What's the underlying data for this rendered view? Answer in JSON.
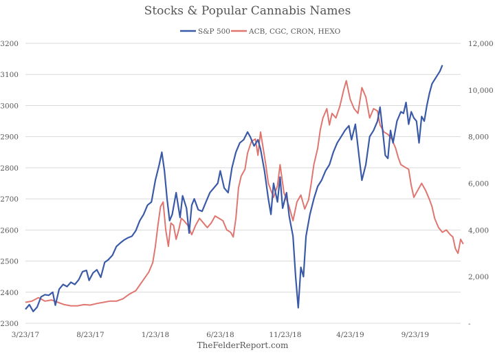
{
  "chart_data": {
    "type": "line",
    "title": "Stocks & Popular Cannabis Names",
    "footer": "TheFelderReport.com",
    "grid": true,
    "legend_position": "top-center",
    "x_tick_labels": [
      "3/23/17",
      "8/23/17",
      "1/23/18",
      "6/23/18",
      "11/23/18",
      "4/23/19",
      "9/23/19"
    ],
    "x_tick_months": [
      0,
      5,
      10,
      15,
      20,
      25,
      30
    ],
    "x_range_months": [
      0,
      33.5
    ],
    "y_left": {
      "ticks": [
        "2300",
        "2400",
        "2500",
        "2600",
        "2700",
        "2800",
        "2900",
        "3000",
        "3100",
        "3200"
      ],
      "range": [
        2300,
        3200
      ]
    },
    "y_right": {
      "ticks": [
        "-",
        "2,000",
        "4,000",
        "6,000",
        "8,000",
        "10,000",
        "12,000"
      ],
      "range": [
        0,
        12000
      ]
    },
    "series": [
      {
        "name": "S&P 500",
        "color": "#3a5aa8",
        "axis": "left",
        "points": [
          [
            0,
            2345
          ],
          [
            0.3,
            2360
          ],
          [
            0.6,
            2338
          ],
          [
            0.9,
            2352
          ],
          [
            1.2,
            2385
          ],
          [
            1.5,
            2392
          ],
          [
            1.8,
            2390
          ],
          [
            2.1,
            2400
          ],
          [
            2.3,
            2358
          ],
          [
            2.6,
            2410
          ],
          [
            2.9,
            2425
          ],
          [
            3.2,
            2418
          ],
          [
            3.5,
            2432
          ],
          [
            3.8,
            2425
          ],
          [
            4.1,
            2440
          ],
          [
            4.4,
            2466
          ],
          [
            4.7,
            2470
          ],
          [
            4.9,
            2438
          ],
          [
            5.2,
            2462
          ],
          [
            5.5,
            2472
          ],
          [
            5.8,
            2448
          ],
          [
            6.1,
            2496
          ],
          [
            6.4,
            2505
          ],
          [
            6.7,
            2519
          ],
          [
            7.0,
            2547
          ],
          [
            7.3,
            2558
          ],
          [
            7.6,
            2568
          ],
          [
            7.9,
            2575
          ],
          [
            8.2,
            2580
          ],
          [
            8.5,
            2598
          ],
          [
            8.8,
            2630
          ],
          [
            9.1,
            2650
          ],
          [
            9.4,
            2680
          ],
          [
            9.7,
            2690
          ],
          [
            10.0,
            2760
          ],
          [
            10.3,
            2810
          ],
          [
            10.5,
            2850
          ],
          [
            10.7,
            2790
          ],
          [
            10.9,
            2700
          ],
          [
            11.1,
            2630
          ],
          [
            11.3,
            2650
          ],
          [
            11.6,
            2720
          ],
          [
            11.9,
            2640
          ],
          [
            12.1,
            2710
          ],
          [
            12.4,
            2670
          ],
          [
            12.6,
            2590
          ],
          [
            12.8,
            2680
          ],
          [
            13.0,
            2700
          ],
          [
            13.3,
            2665
          ],
          [
            13.6,
            2660
          ],
          [
            13.9,
            2690
          ],
          [
            14.2,
            2720
          ],
          [
            14.5,
            2735
          ],
          [
            14.8,
            2750
          ],
          [
            15.0,
            2790
          ],
          [
            15.3,
            2735
          ],
          [
            15.6,
            2720
          ],
          [
            15.9,
            2800
          ],
          [
            16.2,
            2850
          ],
          [
            16.5,
            2880
          ],
          [
            16.8,
            2890
          ],
          [
            17.1,
            2915
          ],
          [
            17.3,
            2900
          ],
          [
            17.6,
            2870
          ],
          [
            17.9,
            2890
          ],
          [
            18.1,
            2860
          ],
          [
            18.4,
            2790
          ],
          [
            18.7,
            2700
          ],
          [
            18.9,
            2650
          ],
          [
            19.1,
            2750
          ],
          [
            19.4,
            2690
          ],
          [
            19.6,
            2770
          ],
          [
            19.8,
            2670
          ],
          [
            20.1,
            2720
          ],
          [
            20.3,
            2645
          ],
          [
            20.6,
            2580
          ],
          [
            20.8,
            2450
          ],
          [
            21.0,
            2350
          ],
          [
            21.2,
            2480
          ],
          [
            21.4,
            2450
          ],
          [
            21.6,
            2580
          ],
          [
            21.9,
            2650
          ],
          [
            22.2,
            2700
          ],
          [
            22.5,
            2740
          ],
          [
            22.8,
            2760
          ],
          [
            23.1,
            2790
          ],
          [
            23.4,
            2810
          ],
          [
            23.7,
            2850
          ],
          [
            24.0,
            2880
          ],
          [
            24.3,
            2900
          ],
          [
            24.6,
            2920
          ],
          [
            24.9,
            2935
          ],
          [
            25.1,
            2890
          ],
          [
            25.4,
            2940
          ],
          [
            25.7,
            2830
          ],
          [
            25.9,
            2760
          ],
          [
            26.2,
            2810
          ],
          [
            26.5,
            2900
          ],
          [
            26.8,
            2920
          ],
          [
            27.1,
            2950
          ],
          [
            27.3,
            2995
          ],
          [
            27.5,
            2920
          ],
          [
            27.7,
            2840
          ],
          [
            27.9,
            2830
          ],
          [
            28.1,
            2920
          ],
          [
            28.3,
            2880
          ],
          [
            28.6,
            2950
          ],
          [
            28.9,
            2980
          ],
          [
            29.1,
            2975
          ],
          [
            29.3,
            3010
          ],
          [
            29.5,
            2940
          ],
          [
            29.7,
            2980
          ],
          [
            29.9,
            2960
          ],
          [
            30.1,
            2950
          ],
          [
            30.3,
            2880
          ],
          [
            30.5,
            2965
          ],
          [
            30.7,
            2950
          ],
          [
            30.9,
            3000
          ],
          [
            31.1,
            3040
          ],
          [
            31.3,
            3070
          ],
          [
            31.6,
            3090
          ],
          [
            31.9,
            3110
          ],
          [
            32.1,
            3130
          ]
        ]
      },
      {
        "name": "ACB, CGC, CRON, HEXO",
        "color": "#e07570",
        "axis": "right",
        "points": [
          [
            0,
            900
          ],
          [
            0.5,
            950
          ],
          [
            1.0,
            1100
          ],
          [
            1.5,
            950
          ],
          [
            2.0,
            1000
          ],
          [
            2.5,
            900
          ],
          [
            3.0,
            800
          ],
          [
            3.5,
            750
          ],
          [
            4.0,
            750
          ],
          [
            4.5,
            800
          ],
          [
            5.0,
            780
          ],
          [
            5.5,
            850
          ],
          [
            6.0,
            900
          ],
          [
            6.5,
            950
          ],
          [
            7.0,
            950
          ],
          [
            7.5,
            1050
          ],
          [
            8.0,
            1250
          ],
          [
            8.5,
            1400
          ],
          [
            9.0,
            1800
          ],
          [
            9.5,
            2200
          ],
          [
            9.8,
            2600
          ],
          [
            10.0,
            3300
          ],
          [
            10.2,
            4200
          ],
          [
            10.4,
            5000
          ],
          [
            10.6,
            5200
          ],
          [
            10.8,
            4000
          ],
          [
            11.0,
            3300
          ],
          [
            11.2,
            4300
          ],
          [
            11.4,
            4200
          ],
          [
            11.6,
            3600
          ],
          [
            11.8,
            4000
          ],
          [
            12.0,
            4500
          ],
          [
            12.2,
            4400
          ],
          [
            12.5,
            4200
          ],
          [
            12.8,
            3800
          ],
          [
            13.1,
            4200
          ],
          [
            13.4,
            4500
          ],
          [
            13.7,
            4300
          ],
          [
            14.0,
            4100
          ],
          [
            14.3,
            4300
          ],
          [
            14.6,
            4600
          ],
          [
            14.9,
            4500
          ],
          [
            15.2,
            4400
          ],
          [
            15.5,
            4000
          ],
          [
            15.8,
            3900
          ],
          [
            16.0,
            3700
          ],
          [
            16.2,
            4500
          ],
          [
            16.4,
            5800
          ],
          [
            16.6,
            6300
          ],
          [
            16.9,
            6600
          ],
          [
            17.1,
            7300
          ],
          [
            17.4,
            7800
          ],
          [
            17.7,
            7900
          ],
          [
            17.9,
            7200
          ],
          [
            18.1,
            8200
          ],
          [
            18.3,
            7500
          ],
          [
            18.5,
            6800
          ],
          [
            18.7,
            6000
          ],
          [
            18.9,
            5700
          ],
          [
            19.1,
            5400
          ],
          [
            19.4,
            5900
          ],
          [
            19.6,
            6800
          ],
          [
            19.9,
            5600
          ],
          [
            20.1,
            5300
          ],
          [
            20.3,
            5000
          ],
          [
            20.6,
            4400
          ],
          [
            20.9,
            5200
          ],
          [
            21.2,
            5500
          ],
          [
            21.5,
            4900
          ],
          [
            21.8,
            5300
          ],
          [
            22.0,
            6000
          ],
          [
            22.2,
            6800
          ],
          [
            22.5,
            7500
          ],
          [
            22.7,
            8300
          ],
          [
            22.9,
            8800
          ],
          [
            23.2,
            9200
          ],
          [
            23.4,
            8500
          ],
          [
            23.6,
            9000
          ],
          [
            23.9,
            8800
          ],
          [
            24.2,
            9300
          ],
          [
            24.5,
            10000
          ],
          [
            24.7,
            10400
          ],
          [
            25.0,
            9600
          ],
          [
            25.3,
            9200
          ],
          [
            25.6,
            9000
          ],
          [
            25.9,
            10100
          ],
          [
            26.2,
            9700
          ],
          [
            26.5,
            8800
          ],
          [
            26.8,
            9200
          ],
          [
            27.1,
            9100
          ],
          [
            27.3,
            8500
          ],
          [
            27.6,
            8200
          ],
          [
            27.9,
            8100
          ],
          [
            28.2,
            7900
          ],
          [
            28.5,
            7500
          ],
          [
            28.7,
            7100
          ],
          [
            28.9,
            6800
          ],
          [
            29.2,
            6700
          ],
          [
            29.5,
            6600
          ],
          [
            29.7,
            5900
          ],
          [
            29.9,
            5400
          ],
          [
            30.2,
            5700
          ],
          [
            30.5,
            6000
          ],
          [
            30.8,
            5700
          ],
          [
            31.1,
            5300
          ],
          [
            31.3,
            5000
          ],
          [
            31.5,
            4500
          ],
          [
            31.8,
            4100
          ],
          [
            32.1,
            3900
          ],
          [
            32.4,
            4000
          ],
          [
            32.7,
            3800
          ],
          [
            32.9,
            3700
          ],
          [
            33.1,
            3200
          ],
          [
            33.3,
            3000
          ],
          [
            33.5,
            3600
          ],
          [
            33.7,
            3400
          ]
        ]
      }
    ]
  }
}
